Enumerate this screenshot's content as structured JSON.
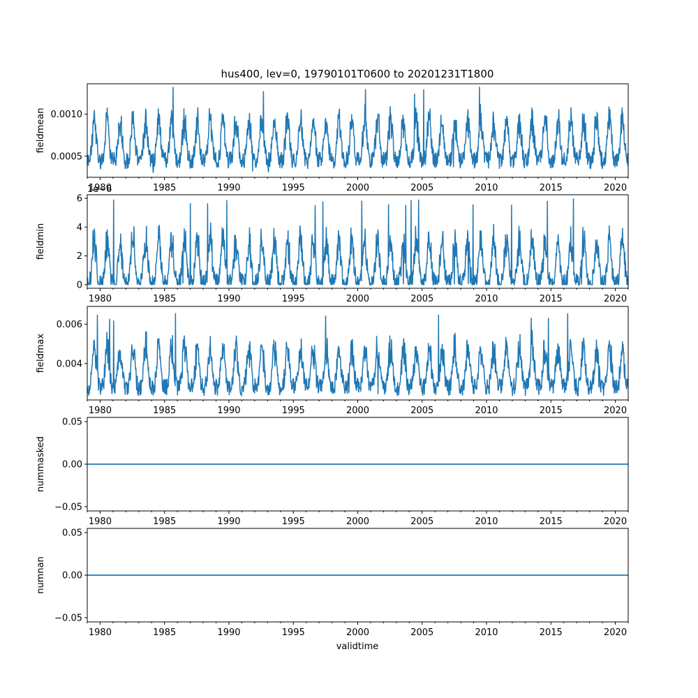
{
  "chart_data": {
    "title": "hus400, lev=0, 19790101T0600 to 20201231T1800",
    "xlabel": "validtime",
    "xlim": [
      1979.0,
      2021.0
    ],
    "x_ticks": [
      1980,
      1985,
      1990,
      1995,
      2000,
      2005,
      2010,
      2015,
      2020
    ],
    "x_tick_labels": [
      "1980",
      "1985",
      "1990",
      "1995",
      "2000",
      "2005",
      "2010",
      "2015",
      "2020"
    ],
    "line_color": "#1f77b4",
    "panels": [
      {
        "type": "line",
        "ylabel": "fieldmean",
        "ylim": [
          0.00025,
          0.00136
        ],
        "y_ticks": [
          0.0005,
          0.001
        ],
        "y_tick_labels": [
          "0.0005",
          "0.0010"
        ],
        "offset_text": "",
        "shape": {
          "low": 0.00045,
          "high": 0.00105,
          "min": 0.0003,
          "max": 0.00133
        }
      },
      {
        "type": "line",
        "ylabel": "fieldmin",
        "ylim": [
          -2.5e-07,
          6.25e-06
        ],
        "y_ticks": [
          0,
          2e-06,
          4e-06,
          6e-06
        ],
        "y_tick_labels": [
          "0",
          "2",
          "4",
          "6"
        ],
        "offset_text": "1e−6",
        "shape": {
          "low": 1e-07,
          "high": 3.9e-06,
          "min": 0.0,
          "max": 6e-06
        }
      },
      {
        "type": "line",
        "ylabel": "fieldmax",
        "ylim": [
          0.00215,
          0.0069
        ],
        "y_ticks": [
          0.004,
          0.006
        ],
        "y_tick_labels": [
          "0.004",
          "0.006"
        ],
        "offset_text": "",
        "shape": {
          "low": 0.0028,
          "high": 0.0054,
          "min": 0.0023,
          "max": 0.0067
        }
      },
      {
        "type": "line",
        "ylabel": "nummasked",
        "ylim": [
          -0.055,
          0.055
        ],
        "y_ticks": [
          -0.05,
          0,
          0.05
        ],
        "y_tick_labels": [
          "−0.05",
          "0.00",
          "0.05"
        ],
        "offset_text": "",
        "constant": 0
      },
      {
        "type": "line",
        "ylabel": "numnan",
        "ylim": [
          -0.055,
          0.055
        ],
        "y_ticks": [
          -0.05,
          0,
          0.05
        ],
        "y_tick_labels": [
          "−0.05",
          "0.00",
          "0.05"
        ],
        "offset_text": "",
        "constant": 0
      }
    ]
  }
}
